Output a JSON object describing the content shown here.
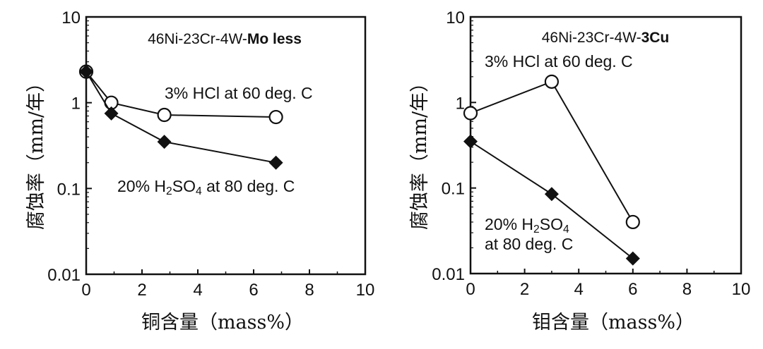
{
  "chart_data": [
    {
      "type": "line",
      "title": "46Ni-23Cr-4W-Mo less",
      "title_parts": [
        {
          "text": "46Ni-23Cr-4W-",
          "bold": false
        },
        {
          "text": "Mo less",
          "bold": true
        }
      ],
      "xlabel": "铜含量（mass%）",
      "ylabel": "腐蚀率（mm/年）",
      "xlim": [
        0,
        10
      ],
      "ylim": [
        0.01,
        10
      ],
      "yscale": "log",
      "x_ticks": [
        "0",
        "2",
        "4",
        "6",
        "8",
        "10"
      ],
      "y_ticks": [
        "0.01",
        "0.1",
        "1",
        "10"
      ],
      "grid": false,
      "series": [
        {
          "label_parts": [
            {
              "text": "3% HCl at 60 deg. C"
            }
          ],
          "marker": "open-circle",
          "x": [
            0,
            0.9,
            2.8,
            6.8
          ],
          "y": [
            2.3,
            1.0,
            0.72,
            0.68
          ]
        },
        {
          "label_parts": [
            {
              "text": "20% H"
            },
            {
              "text": "2",
              "sub": true
            },
            {
              "text": "SO"
            },
            {
              "text": "4",
              "sub": true
            },
            {
              "text": " at 80 deg. C"
            }
          ],
          "marker": "filled-diamond",
          "x": [
            0,
            0.9,
            2.8,
            6.8
          ],
          "y": [
            2.3,
            0.75,
            0.35,
            0.2
          ]
        }
      ]
    },
    {
      "type": "line",
      "title": "46Ni-23Cr-4W-3Cu",
      "title_parts": [
        {
          "text": "46Ni-23Cr-4W-",
          "bold": false
        },
        {
          "text": "3Cu",
          "bold": true
        }
      ],
      "xlabel": "钼含量（mass%）",
      "ylabel": "腐蚀率（mm/年）",
      "xlim": [
        0,
        10
      ],
      "ylim": [
        0.01,
        10
      ],
      "yscale": "log",
      "x_ticks": [
        "0",
        "2",
        "4",
        "6",
        "8",
        "10"
      ],
      "y_ticks": [
        "0.01",
        "0.1",
        "1",
        "10"
      ],
      "y_tick_display": [
        "0.01",
        "0.1",
        "1",
        "10"
      ],
      "grid": false,
      "series": [
        {
          "label_parts": [
            {
              "text": "3% HCl at 60 deg. C"
            }
          ],
          "marker": "open-circle",
          "x": [
            0,
            3,
            6
          ],
          "y": [
            0.75,
            1.75,
            0.04
          ]
        },
        {
          "label_lines": [
            [
              {
                "text": "20% H"
              },
              {
                "text": "2",
                "sub": true
              },
              {
                "text": "SO"
              },
              {
                "text": "4",
                "sub": true
              }
            ],
            [
              {
                "text": "at 80 deg. C"
              }
            ]
          ],
          "marker": "filled-diamond",
          "x": [
            0,
            3,
            6
          ],
          "y": [
            0.35,
            0.085,
            0.015
          ]
        }
      ]
    }
  ]
}
